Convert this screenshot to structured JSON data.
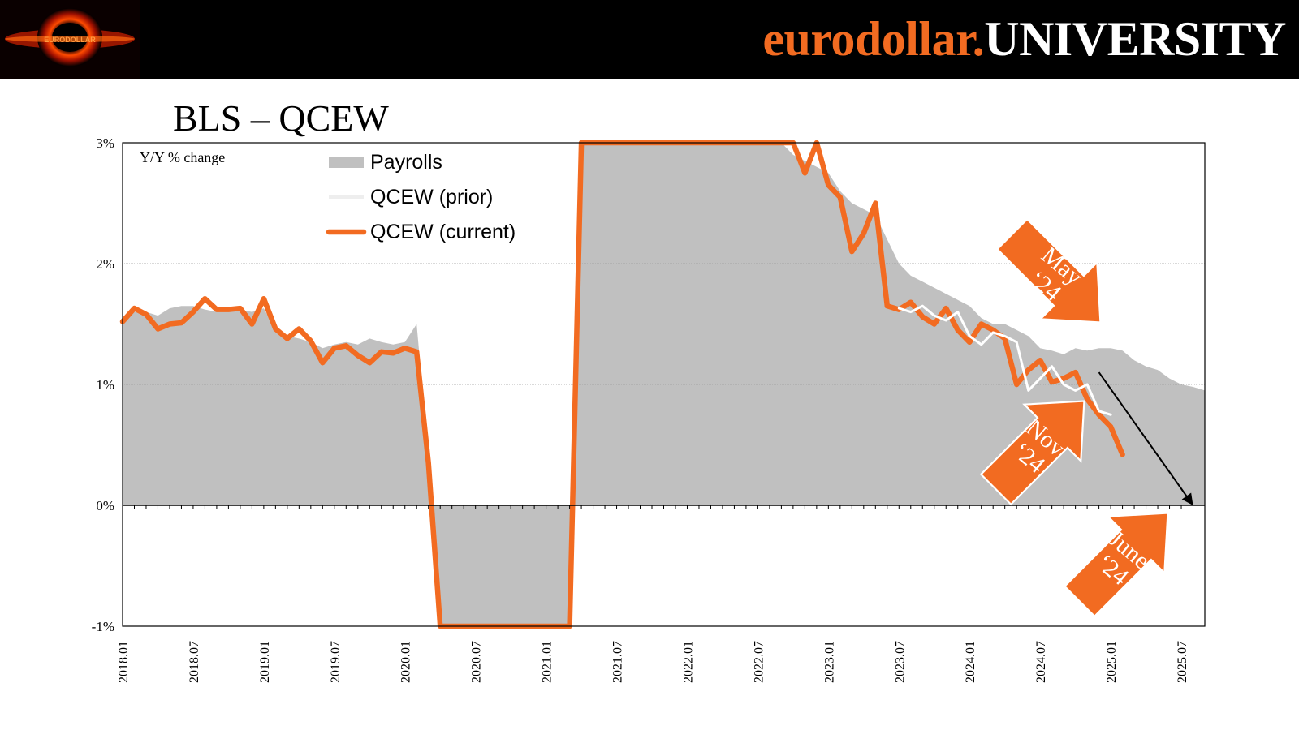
{
  "header": {
    "brand_part1": "eurodollar.",
    "brand_part2": "UNIVERSITY",
    "brand_color": "#f26b21",
    "logo_text": "EURODOLLAR"
  },
  "chart_data": {
    "type": "line",
    "title": "BLS – QCEW",
    "annotation_units": "Y/Y % change",
    "xlabel": "",
    "ylabel": "",
    "ylim": [
      -1,
      3
    ],
    "yticks": [
      -1,
      0,
      1,
      2,
      3
    ],
    "ytick_labels": [
      "-1%",
      "0%",
      "1%",
      "2%",
      "3%"
    ],
    "xlim": [
      "2018.01",
      "2025.09"
    ],
    "xtick_labels": [
      "2018.01",
      "2018.07",
      "2019.01",
      "2019.07",
      "2020.01",
      "2020.07",
      "2021.01",
      "2021.07",
      "2022.01",
      "2022.07",
      "2023.01",
      "2023.07",
      "2024.01",
      "2024.07",
      "2025.01",
      "2025.07"
    ],
    "grid": true,
    "legend_position": "top-left",
    "colors": {
      "payrolls": "#c0c0c0",
      "qcew_prior": "#ffffff",
      "qcew_current": "#f26b21",
      "arrow_fill": "#f26b21",
      "trend_arrow": "#000000"
    },
    "series": [
      {
        "name": "Payrolls",
        "kind": "area",
        "x": [
          "2018.01",
          "2018.02",
          "2018.03",
          "2018.04",
          "2018.05",
          "2018.06",
          "2018.07",
          "2018.08",
          "2018.09",
          "2018.10",
          "2018.11",
          "2018.12",
          "2019.01",
          "2019.02",
          "2019.03",
          "2019.04",
          "2019.05",
          "2019.06",
          "2019.07",
          "2019.08",
          "2019.09",
          "2019.10",
          "2019.11",
          "2019.12",
          "2020.01",
          "2020.02",
          "2020.03",
          "2020.04",
          "2021.03",
          "2021.04",
          "2022.08",
          "2022.09",
          "2022.10",
          "2022.11",
          "2022.12",
          "2023.01",
          "2023.02",
          "2023.03",
          "2023.04",
          "2023.05",
          "2023.06",
          "2023.07",
          "2023.08",
          "2023.09",
          "2023.10",
          "2023.11",
          "2023.12",
          "2024.01",
          "2024.02",
          "2024.03",
          "2024.04",
          "2024.05",
          "2024.06",
          "2024.07",
          "2024.08",
          "2024.09",
          "2024.10",
          "2024.11",
          "2024.12",
          "2025.01",
          "2025.02",
          "2025.03",
          "2025.04",
          "2025.05",
          "2025.06",
          "2025.07",
          "2025.08",
          "2025.09"
        ],
        "values": [
          1.55,
          1.6,
          1.6,
          1.57,
          1.63,
          1.65,
          1.65,
          1.62,
          1.6,
          1.62,
          1.62,
          1.6,
          1.63,
          1.45,
          1.4,
          1.38,
          1.35,
          1.3,
          1.33,
          1.35,
          1.33,
          1.38,
          1.35,
          1.33,
          1.35,
          1.5,
          0.4,
          -1.2,
          -1.2,
          3.2,
          3.2,
          3.0,
          2.9,
          2.85,
          2.8,
          2.75,
          2.6,
          2.5,
          2.45,
          2.4,
          2.2,
          2.0,
          1.9,
          1.85,
          1.8,
          1.75,
          1.7,
          1.65,
          1.55,
          1.5,
          1.5,
          1.45,
          1.4,
          1.3,
          1.28,
          1.25,
          1.3,
          1.28,
          1.3,
          1.3,
          1.28,
          1.2,
          1.15,
          1.12,
          1.05,
          1.0,
          0.98,
          0.95
        ]
      },
      {
        "name": "QCEW (prior)",
        "kind": "line",
        "x": [
          "2023.07",
          "2023.08",
          "2023.09",
          "2023.10",
          "2023.11",
          "2023.12",
          "2024.01",
          "2024.02",
          "2024.03",
          "2024.04",
          "2024.05",
          "2024.06",
          "2024.07",
          "2024.08",
          "2024.09",
          "2024.10",
          "2024.11",
          "2024.12",
          "2025.01"
        ],
        "values": [
          1.63,
          1.6,
          1.65,
          1.57,
          1.53,
          1.6,
          1.4,
          1.33,
          1.43,
          1.4,
          1.35,
          0.95,
          1.05,
          1.15,
          1.0,
          0.95,
          1.0,
          0.78,
          0.75
        ]
      },
      {
        "name": "QCEW (current)",
        "kind": "line",
        "x": [
          "2018.01",
          "2018.02",
          "2018.03",
          "2018.04",
          "2018.05",
          "2018.06",
          "2018.07",
          "2018.08",
          "2018.09",
          "2018.10",
          "2018.11",
          "2018.12",
          "2019.01",
          "2019.02",
          "2019.03",
          "2019.04",
          "2019.05",
          "2019.06",
          "2019.07",
          "2019.08",
          "2019.09",
          "2019.10",
          "2019.11",
          "2019.12",
          "2020.01",
          "2020.02",
          "2020.03",
          "2020.04",
          "2021.03",
          "2021.04",
          "2022.10",
          "2022.11",
          "2022.12",
          "2023.01",
          "2023.02",
          "2023.03",
          "2023.04",
          "2023.05",
          "2023.06",
          "2023.07",
          "2023.08",
          "2023.09",
          "2023.10",
          "2023.11",
          "2023.12",
          "2024.01",
          "2024.02",
          "2024.03",
          "2024.04",
          "2024.05",
          "2024.06",
          "2024.07",
          "2024.08",
          "2024.09",
          "2024.10",
          "2024.11",
          "2024.12",
          "2025.01",
          "2025.02",
          "2025.03"
        ],
        "values": [
          1.52,
          1.63,
          1.58,
          1.46,
          1.5,
          1.51,
          1.6,
          1.71,
          1.62,
          1.62,
          1.63,
          1.5,
          1.71,
          1.46,
          1.38,
          1.46,
          1.36,
          1.18,
          1.3,
          1.32,
          1.24,
          1.18,
          1.27,
          1.26,
          1.3,
          1.27,
          0.35,
          -1.2,
          -1.2,
          3.2,
          3.2,
          2.75,
          3.1,
          2.65,
          2.55,
          2.1,
          2.25,
          2.5,
          1.65,
          1.62,
          1.68,
          1.56,
          1.5,
          1.63,
          1.45,
          1.35,
          1.5,
          1.45,
          1.38,
          1.0,
          1.12,
          1.2,
          1.02,
          1.05,
          1.1,
          0.88,
          0.75,
          0.65,
          0.42,
          null
        ]
      }
    ],
    "trend_arrow": {
      "from_x": "2024.12",
      "from_y": 1.1,
      "to_x": "2025.08",
      "to_y": 0.0
    },
    "callouts": [
      {
        "label_line1": "May",
        "label_line2": "‘24"
      },
      {
        "label_line1": "Nov",
        "label_line2": "‘24"
      },
      {
        "label_line1": "June",
        "label_line2": "‘24"
      }
    ]
  }
}
